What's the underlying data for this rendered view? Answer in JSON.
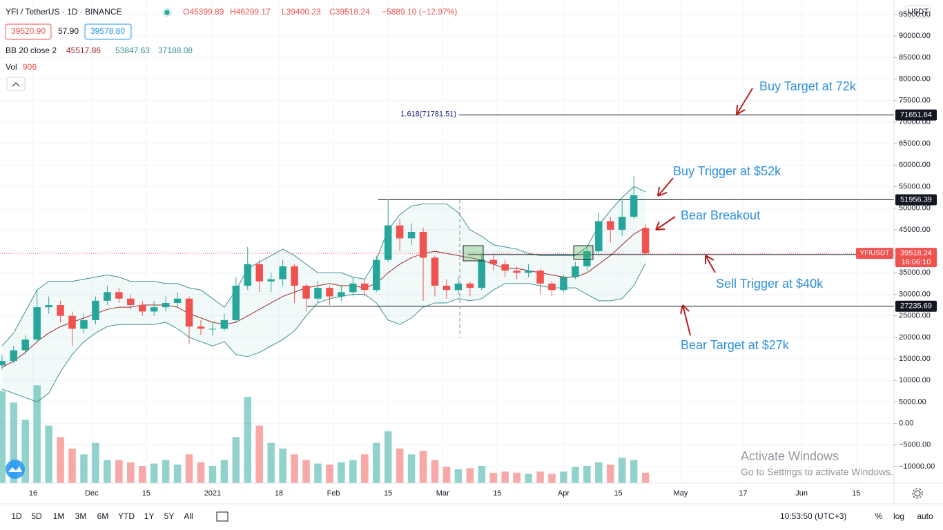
{
  "header": {
    "symbol": "YFI / TetherUS · 1D · BINANCE",
    "ohlc": [
      "O45399.89",
      "H46299.17",
      "L39400.23",
      "C39518.24",
      "−5889.10 (−12.97%)"
    ],
    "bid": "39520.90",
    "spread": "57.90",
    "ask": "39578.80",
    "bb_label": "BB 20 close 2",
    "bb_values": [
      "45517.86",
      "53847.63",
      "37188.08"
    ],
    "vol_label": "Vol",
    "vol_value": "906"
  },
  "chart_data": {
    "type": "candlestick",
    "currency": "USDT",
    "grid": true,
    "colors": {
      "up": "#26a69a",
      "down": "#ef5350",
      "bb_band": "#3d8f93",
      "bb_mid": "#9c2a2a"
    },
    "xlim": [
      6.5,
      235.7
    ],
    "xticks": [
      {
        "value": 15,
        "label": "16"
      },
      {
        "value": 30,
        "label": "Dec"
      },
      {
        "value": 44,
        "label": "15"
      },
      {
        "value": 61,
        "label": "2021"
      },
      {
        "value": 78,
        "label": "18"
      },
      {
        "value": 92,
        "label": "Feb"
      },
      {
        "value": 106,
        "label": "15"
      },
      {
        "value": 120,
        "label": "Mar"
      },
      {
        "value": 134,
        "label": "15"
      },
      {
        "value": 151,
        "label": "Apr"
      },
      {
        "value": 165,
        "label": "15"
      },
      {
        "value": 181,
        "label": "May"
      },
      {
        "value": 197,
        "label": "17"
      },
      {
        "value": 212,
        "label": "Jun"
      },
      {
        "value": 226,
        "label": "15"
      }
    ],
    "ylim": [
      -13850,
      98366
    ],
    "yticks": [
      {
        "value": 95000,
        "label": "95000.00"
      },
      {
        "value": 90000,
        "label": "90000.00"
      },
      {
        "value": 85000,
        "label": "85000.00"
      },
      {
        "value": 80000,
        "label": "80000.00"
      },
      {
        "value": 75000,
        "label": "75000.00"
      },
      {
        "value": 70000,
        "label": "70000.00"
      },
      {
        "value": 65000,
        "label": "65000.00"
      },
      {
        "value": 60000,
        "label": "60000.00"
      },
      {
        "value": 55000,
        "label": "55000.00"
      },
      {
        "value": 50000,
        "label": "50000.00"
      },
      {
        "value": 45000,
        "label": "45000.00"
      },
      {
        "value": 40000,
        "label": "40000.00"
      },
      {
        "value": 35000,
        "label": "35000.00"
      },
      {
        "value": 30000,
        "label": "30000.00"
      },
      {
        "value": 25000,
        "label": "25000.00"
      },
      {
        "value": 20000,
        "label": "20000.00"
      },
      {
        "value": 15000,
        "label": "15000.00"
      },
      {
        "value": 10000,
        "label": "10000.00"
      },
      {
        "value": 5000,
        "label": "5000.00"
      },
      {
        "value": 0,
        "label": "0.00"
      },
      {
        "value": -5000,
        "label": "−5000.00"
      },
      {
        "value": -10000,
        "label": "−10000.00"
      }
    ],
    "x": [
      7,
      10,
      13,
      16,
      19,
      22,
      25,
      28,
      31,
      34,
      37,
      40,
      43,
      46,
      49,
      52,
      55,
      58,
      61,
      64,
      67,
      70,
      73,
      76,
      79,
      82,
      85,
      88,
      91,
      94,
      97,
      100,
      103,
      106,
      109,
      112,
      115,
      118,
      121,
      124,
      127,
      130,
      133,
      136,
      139,
      142,
      145,
      148,
      151,
      154,
      157,
      160,
      163,
      166,
      169,
      172
    ],
    "candles": [
      [
        13500,
        16000,
        12500,
        14500
      ],
      [
        14500,
        18000,
        14000,
        17000
      ],
      [
        17000,
        20500,
        16000,
        19500
      ],
      [
        19500,
        31000,
        19000,
        27000
      ],
      [
        27000,
        29500,
        25500,
        27500
      ],
      [
        27500,
        28500,
        23500,
        25000
      ],
      [
        25000,
        26000,
        18000,
        22000
      ],
      [
        22000,
        25500,
        21000,
        24000
      ],
      [
        24000,
        29500,
        23000,
        28500
      ],
      [
        28500,
        32000,
        27500,
        30500
      ],
      [
        30500,
        31500,
        28000,
        29000
      ],
      [
        29000,
        30000,
        26500,
        27500
      ],
      [
        27500,
        28500,
        25000,
        26000
      ],
      [
        26000,
        28500,
        25000,
        27000
      ],
      [
        27000,
        29500,
        26000,
        28000
      ],
      [
        28000,
        30500,
        27000,
        29000
      ],
      [
        29000,
        29500,
        18500,
        22500
      ],
      [
        22500,
        24000,
        20500,
        22000
      ],
      [
        22000,
        23500,
        20500,
        22000
      ],
      [
        22000,
        25500,
        21500,
        24000
      ],
      [
        24000,
        34000,
        23500,
        32000
      ],
      [
        32000,
        41000,
        31000,
        37000
      ],
      [
        37000,
        38000,
        30500,
        33000
      ],
      [
        33000,
        35000,
        30500,
        33500
      ],
      [
        33500,
        38000,
        32000,
        36500
      ],
      [
        36500,
        37000,
        28000,
        32000
      ],
      [
        32000,
        32500,
        26000,
        29000
      ],
      [
        29000,
        33000,
        28000,
        31500
      ],
      [
        31500,
        32000,
        27500,
        29500
      ],
      [
        29500,
        32000,
        28500,
        30500
      ],
      [
        30500,
        34000,
        29500,
        32500
      ],
      [
        32500,
        33500,
        29500,
        31000
      ],
      [
        31000,
        39000,
        30500,
        38000
      ],
      [
        38000,
        52000,
        37500,
        46000
      ],
      [
        46000,
        47500,
        40000,
        43000
      ],
      [
        43000,
        46500,
        41500,
        44500
      ],
      [
        44500,
        45500,
        28500,
        38500
      ],
      [
        38500,
        39000,
        29500,
        32000
      ],
      [
        32000,
        33500,
        29000,
        31000
      ],
      [
        31000,
        34000,
        30000,
        32500
      ],
      [
        32500,
        33000,
        29500,
        31500
      ],
      [
        31500,
        39500,
        31000,
        38000
      ],
      [
        38000,
        39500,
        35500,
        37000
      ],
      [
        37000,
        38000,
        34000,
        35500
      ],
      [
        35500,
        36500,
        33500,
        35000
      ],
      [
        35000,
        37000,
        34000,
        35500
      ],
      [
        35500,
        36000,
        30000,
        32500
      ],
      [
        32500,
        33000,
        29500,
        31000
      ],
      [
        31000,
        34500,
        30500,
        34000
      ],
      [
        34000,
        37500,
        33500,
        36500
      ],
      [
        36500,
        41000,
        35500,
        40000
      ],
      [
        40000,
        49000,
        39500,
        47000
      ],
      [
        47000,
        48000,
        42000,
        45000
      ],
      [
        45000,
        52000,
        43500,
        48000
      ],
      [
        48000,
        57500,
        47500,
        53000
      ],
      [
        45399.89,
        46299.17,
        39400.23,
        39518.24
      ]
    ],
    "vol_ylim": [
      0,
      42000
    ],
    "volume": [
      8000,
      7000,
      5500,
      8500,
      5000,
      4000,
      3000,
      2500,
      3500,
      2000,
      2000,
      1800,
      1500,
      1700,
      2000,
      1600,
      2500,
      1800,
      1500,
      2000,
      4000,
      7500,
      5000,
      3500,
      3000,
      2500,
      2000,
      1700,
      1600,
      1800,
      2000,
      2500,
      3500,
      4500,
      3000,
      2500,
      2800,
      2000,
      1400,
      1200,
      1300,
      1500,
      900,
      1000,
      900,
      800,
      1000,
      800,
      1000,
      1400,
      1500,
      1800,
      1600,
      2200,
      2000,
      906
    ],
    "bb": {
      "upper": [
        18000,
        21000,
        26000,
        31000,
        33000,
        33000,
        33000,
        33500,
        34000,
        34500,
        34000,
        33000,
        33000,
        33000,
        32500,
        32500,
        31500,
        31000,
        29000,
        27000,
        31000,
        36000,
        37500,
        39000,
        40500,
        39000,
        37000,
        35000,
        35000,
        35000,
        34000,
        33500,
        38000,
        45000,
        48500,
        50500,
        51000,
        51000,
        51000,
        49000,
        45000,
        43500,
        41500,
        41000,
        40500,
        39500,
        39000,
        39000,
        39000,
        39000,
        41000,
        46000,
        49500,
        52500,
        55000,
        53847.63
      ],
      "mid": [
        13000,
        14500,
        16500,
        19000,
        21000,
        22500,
        23500,
        24500,
        25500,
        26500,
        27000,
        27000,
        27500,
        27500,
        27500,
        27000,
        25500,
        24500,
        23500,
        23000,
        23500,
        25000,
        26500,
        28000,
        29500,
        30500,
        31500,
        32000,
        32500,
        32000,
        32000,
        31500,
        32500,
        35000,
        37000,
        38500,
        39500,
        40000,
        39500,
        39000,
        38500,
        38000,
        37000,
        36000,
        36000,
        35500,
        35000,
        34500,
        34000,
        34000,
        35000,
        37000,
        39000,
        41500,
        44000,
        45517.86
      ],
      "lower": [
        8000,
        7000,
        6000,
        5000,
        7000,
        12000,
        16000,
        19000,
        21000,
        22500,
        23000,
        23000,
        23000,
        23000,
        23500,
        22000,
        20000,
        19000,
        18000,
        19000,
        16000,
        15500,
        16500,
        18000,
        19500,
        21500,
        25000,
        28000,
        29000,
        29500,
        30000,
        30000,
        28000,
        24000,
        23000,
        24500,
        27000,
        28000,
        28000,
        29000,
        28500,
        29000,
        31000,
        32500,
        32500,
        32500,
        32000,
        31500,
        31500,
        31500,
        30000,
        28500,
        28500,
        29000,
        32000,
        37188.08
      ]
    },
    "levels": [
      71651.64,
      51956.39,
      39234.62,
      27235.69
    ],
    "fib_label": "1.618(71781.51)",
    "price": {
      "value": 39518.24,
      "symbol": "YFIUSDT",
      "countdown": "16:06:10"
    },
    "annotations": [
      "Buy Target at 72k",
      "Buy Trigger at $52k",
      "Bear Breakout",
      "Sell Trigger at $40k",
      "Bear Target at $27k"
    ]
  },
  "toolbar": {
    "ranges": [
      "1D",
      "5D",
      "1M",
      "3M",
      "6M",
      "YTD",
      "1Y",
      "5Y",
      "All"
    ],
    "clock": "10:53:50 (UTC+3)",
    "options": [
      "%",
      "log",
      "auto"
    ]
  },
  "watermark": {
    "title": "Activate Windows",
    "text": "Go to Settings to activate Windows."
  }
}
